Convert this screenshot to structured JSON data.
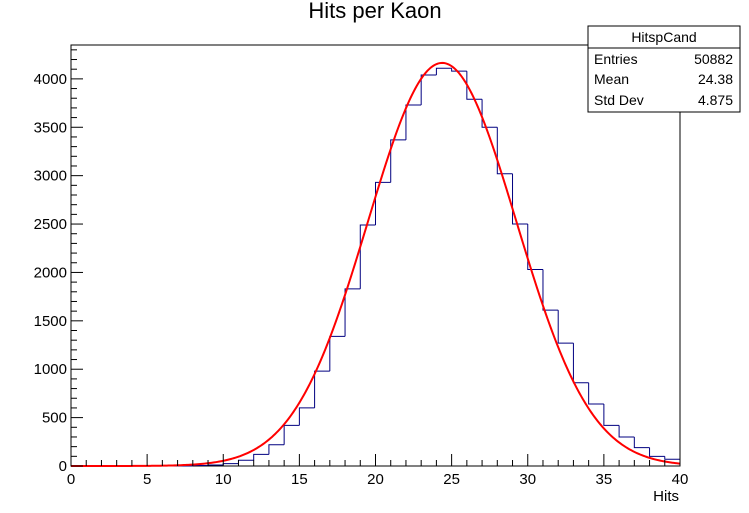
{
  "chart_data": {
    "type": "bar",
    "title": "Hits per Kaon",
    "xlabel": "Hits",
    "ylabel": "",
    "xlim": [
      0,
      40
    ],
    "ylim": [
      0,
      4350
    ],
    "x_ticks": [
      0,
      5,
      10,
      15,
      20,
      25,
      30,
      35,
      40
    ],
    "y_ticks": [
      0,
      500,
      1000,
      1500,
      2000,
      2500,
      3000,
      3500,
      4000
    ],
    "bin_edges": [
      0,
      1,
      2,
      3,
      4,
      5,
      6,
      7,
      8,
      9,
      10,
      11,
      12,
      13,
      14,
      15,
      16,
      17,
      18,
      19,
      20,
      21,
      22,
      23,
      24,
      25,
      26,
      27,
      28,
      29,
      30,
      31,
      32,
      33,
      34,
      35,
      36,
      37,
      38,
      39,
      40
    ],
    "series": [
      {
        "kind": "histogram",
        "color": "#000080",
        "values": [
          0,
          0,
          0,
          0,
          0,
          0,
          0,
          0,
          5,
          10,
          25,
          60,
          120,
          220,
          420,
          600,
          980,
          1340,
          1830,
          2490,
          2930,
          3370,
          3730,
          4040,
          4110,
          4080,
          3790,
          3500,
          3020,
          2500,
          2030,
          1610,
          1270,
          860,
          640,
          420,
          300,
          190,
          100,
          70
        ]
      },
      {
        "kind": "fit",
        "color": "#ff0000",
        "function": "gaus",
        "params": {
          "constant": 4165,
          "mean": 24.38,
          "sigma": 4.875
        }
      }
    ],
    "stats_box": {
      "title": "HitspCand",
      "rows": [
        {
          "label": "Entries",
          "value": "50882"
        },
        {
          "label": "Mean",
          "value": "24.38"
        },
        {
          "label": "Std Dev",
          "value": "4.875"
        }
      ]
    },
    "grid": false
  }
}
